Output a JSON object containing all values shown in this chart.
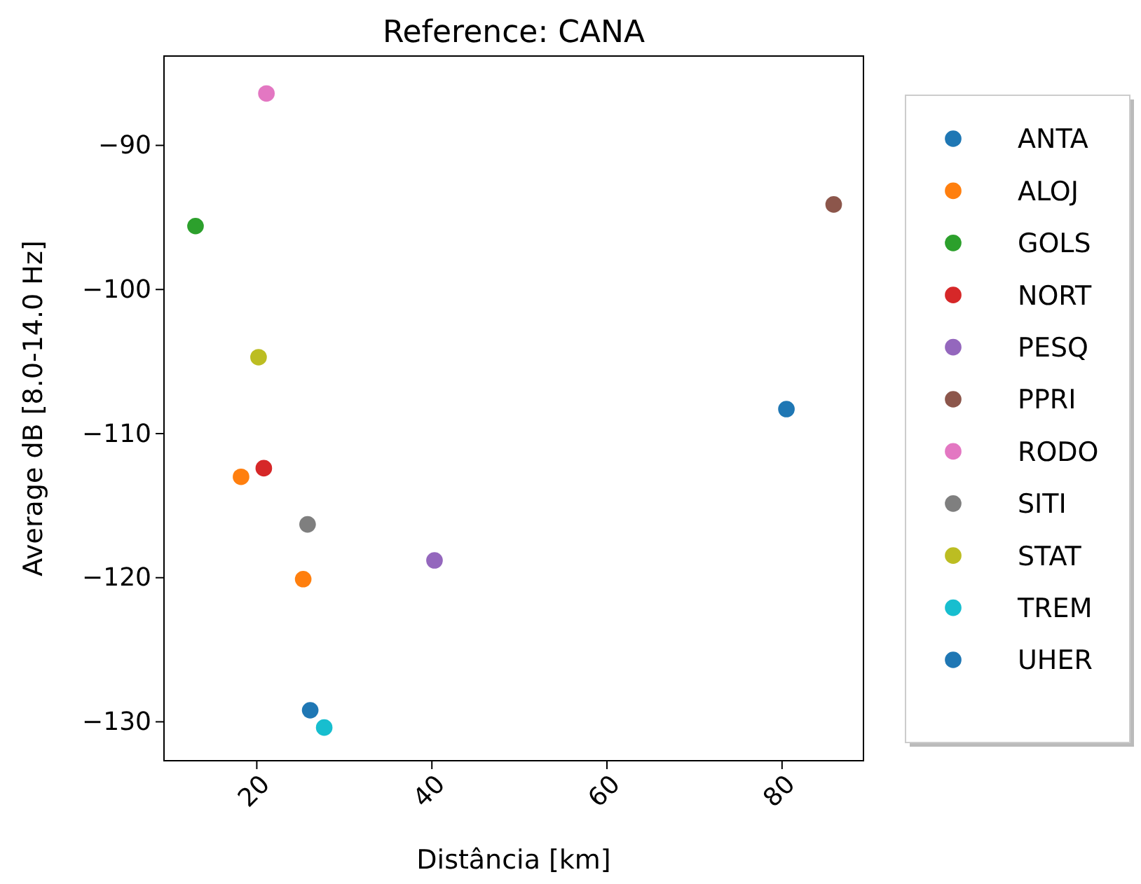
{
  "chart_data": {
    "type": "scatter",
    "title": "Reference: CANA",
    "xlabel": "Distância [km]",
    "ylabel": "Average dB [8.0-14.0 Hz]",
    "xlim": [
      9.4,
      89.3
    ],
    "xticks": [
      20,
      40,
      60,
      80
    ],
    "ylim": [
      -132.7,
      -83.8
    ],
    "yticks": [
      {
        "value": -90,
        "label": "−90"
      },
      {
        "value": -100,
        "label": "−100"
      },
      {
        "value": -110,
        "label": "−110"
      },
      {
        "value": -120,
        "label": "−120"
      },
      {
        "value": -130,
        "label": "−130"
      }
    ],
    "marker": "circle",
    "legend": "right",
    "grid": false,
    "series": [
      {
        "name": "ANTA",
        "color": "#1f77b4",
        "x": [
          80.5
        ],
        "values": [
          -108.3
        ]
      },
      {
        "name": "ALOJ",
        "color": "#ff7f0e",
        "x": [
          18.2,
          25.3
        ],
        "values": [
          -113.0,
          -120.1
        ]
      },
      {
        "name": "GOLS",
        "color": "#2ca02c",
        "x": [
          13.0
        ],
        "values": [
          -95.6
        ]
      },
      {
        "name": "NORT",
        "color": "#d62728",
        "x": [
          20.8
        ],
        "values": [
          -112.4
        ]
      },
      {
        "name": "PESQ",
        "color": "#9467bd",
        "x": [
          40.3
        ],
        "values": [
          -118.8
        ]
      },
      {
        "name": "PPRI",
        "color": "#8c564b",
        "x": [
          85.9
        ],
        "values": [
          -94.1
        ]
      },
      {
        "name": "RODO",
        "color": "#e377c2",
        "x": [
          21.1
        ],
        "values": [
          -86.4
        ]
      },
      {
        "name": "SITI",
        "color": "#7f7f7f",
        "x": [
          25.8
        ],
        "values": [
          -116.3
        ]
      },
      {
        "name": "STAT",
        "color": "#bcbd22",
        "x": [
          20.2
        ],
        "values": [
          -104.7
        ]
      },
      {
        "name": "TREM",
        "color": "#17becf",
        "x": [
          27.7
        ],
        "values": [
          -130.4
        ]
      },
      {
        "name": "UHER",
        "color": "#1f77b4",
        "x": [
          26.1
        ],
        "values": [
          -129.2
        ]
      }
    ]
  }
}
